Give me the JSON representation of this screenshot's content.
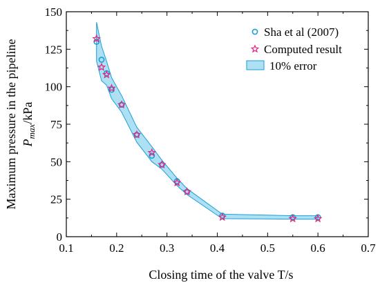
{
  "chart_data": {
    "type": "scatter",
    "xlim": [
      0.1,
      0.7
    ],
    "ylim": [
      0,
      150
    ],
    "x_ticks": [
      0.1,
      0.2,
      0.3,
      0.4,
      0.5,
      0.6,
      0.7
    ],
    "y_ticks": [
      0,
      25,
      50,
      75,
      100,
      125,
      150
    ],
    "x_tick_labels": [
      "0.1",
      "0.2",
      "0.3",
      "0.4",
      "0.5",
      "0.6",
      "0.7"
    ],
    "y_tick_labels": [
      "0",
      "25",
      "50",
      "75",
      "100",
      "125",
      "150"
    ],
    "xlabel": "Closing time of the valve T/s",
    "ylabel_line1": "Maximum pressure in the pipeline",
    "ylabel_sym": "P",
    "ylabel_sub": "max",
    "ylabel_unit": "/kPa",
    "legend_position": "top-right",
    "series": [
      {
        "name": "Sha et al (2007)",
        "marker": "circle",
        "color": "#1a9ed6",
        "x": [
          0.16,
          0.17,
          0.18,
          0.19,
          0.21,
          0.24,
          0.27,
          0.29,
          0.32,
          0.34,
          0.41,
          0.55,
          0.6
        ],
        "y": [
          130,
          118,
          109,
          98,
          88,
          68,
          54,
          48,
          37,
          30,
          14,
          13,
          13
        ]
      },
      {
        "name": "Computed result",
        "marker": "star",
        "color": "#e3237f",
        "x": [
          0.16,
          0.17,
          0.18,
          0.19,
          0.21,
          0.24,
          0.27,
          0.29,
          0.32,
          0.34,
          0.41,
          0.55,
          0.6
        ],
        "y": [
          132,
          113,
          108,
          99,
          88,
          68,
          56,
          48,
          36,
          30,
          13,
          12,
          12
        ]
      }
    ],
    "band": {
      "name": "10% error",
      "fill": "#aee0f4",
      "stroke": "#1a9ed6",
      "x": [
        0.16,
        0.17,
        0.18,
        0.19,
        0.21,
        0.24,
        0.27,
        0.29,
        0.32,
        0.34,
        0.41,
        0.55,
        0.6
      ],
      "upper": [
        143,
        127,
        117,
        106,
        94,
        73,
        60,
        51,
        39,
        32,
        15,
        14,
        14
      ],
      "lower": [
        117,
        104,
        101,
        92,
        83,
        63,
        50,
        45,
        34,
        28,
        12,
        11.7,
        11.7
      ]
    }
  }
}
